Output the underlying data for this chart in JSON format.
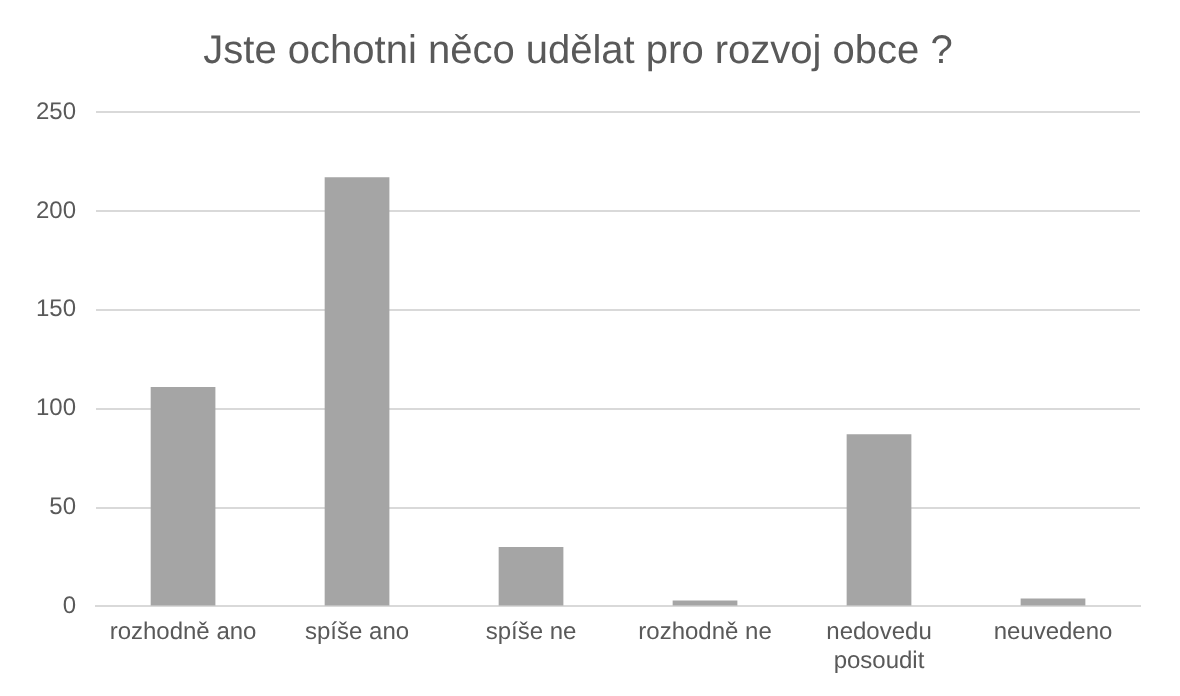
{
  "chart_data": {
    "type": "bar",
    "title": "Jste ochotni něco udělat pro rozvoj obce ?",
    "categories": [
      "rozhodně ano",
      "spíše ano",
      "spíše ne",
      "rozhodně ne",
      "nedovedu posoudit",
      "neuvedeno"
    ],
    "values": [
      111,
      217,
      30,
      3,
      87,
      4
    ],
    "color": "#a5a5a5",
    "ylim": [
      0,
      250
    ],
    "yticks": [
      0,
      50,
      100,
      150,
      200,
      250
    ],
    "grid": "y"
  }
}
